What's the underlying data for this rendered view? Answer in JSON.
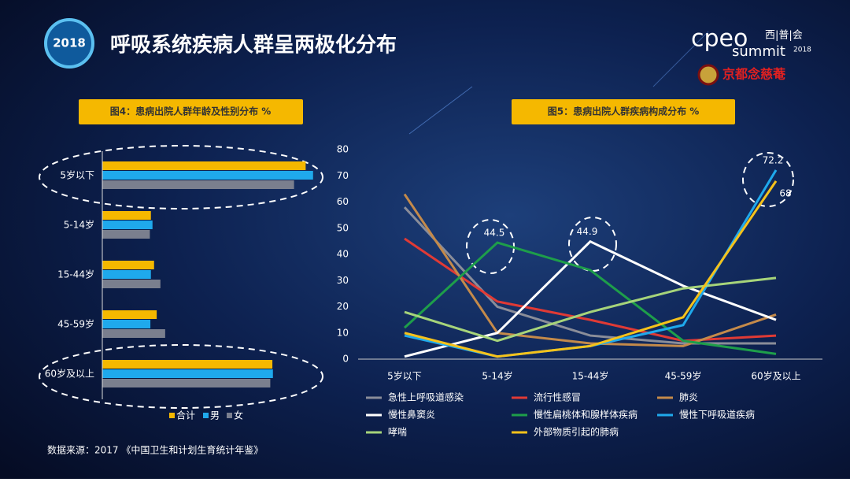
{
  "header": {
    "badge": "2018",
    "title": "呼吸系统疾病人群呈两极化分布"
  },
  "logo": {
    "brand": "cpeo",
    "brand_cn": "西|普|会",
    "summit": "summit",
    "year": "2018",
    "sponsor": "京都念慈菴"
  },
  "source": "数据来源：2017 《中国卫生和计划生育统计年鉴》",
  "chart_data": [
    {
      "type": "hbar",
      "title": "图4：患病出院人群年龄及性别分布 %",
      "categories": [
        "5岁以下",
        "5-14岁",
        "15-44岁",
        "45-59岁",
        "60岁及以上"
      ],
      "xlim": [
        0,
        45
      ],
      "series": [
        {
          "name": "合计",
          "color": "#f5b800",
          "values": [
            38.5,
            9.2,
            9.8,
            10.3,
            32.2
          ]
        },
        {
          "name": "男",
          "color": "#1fa9ec",
          "values": [
            39.9,
            9.5,
            9.2,
            9.1,
            32.3
          ]
        },
        {
          "name": "女",
          "color": "#7a7f8e",
          "values": [
            36.3,
            9.0,
            11.0,
            11.9,
            31.8
          ]
        }
      ]
    },
    {
      "type": "line",
      "title": "图5：患病出院人群疾病构成分布 %",
      "categories": [
        "5岁以下",
        "5-14岁",
        "15-44岁",
        "45-59岁",
        "60岁及以上"
      ],
      "ylim": [
        0,
        80
      ],
      "yticks": [
        0,
        10,
        20,
        30,
        40,
        50,
        60,
        70,
        80
      ],
      "series": [
        {
          "name": "急性上呼吸道感染",
          "color": "#8a8d99",
          "values": [
            58,
            20,
            9,
            6,
            6
          ]
        },
        {
          "name": "流行性感冒",
          "color": "#e03a35",
          "values": [
            46,
            22,
            15,
            7,
            9
          ]
        },
        {
          "name": "肺炎",
          "color": "#c48a4a",
          "values": [
            63,
            10,
            6,
            5,
            17
          ]
        },
        {
          "name": "慢性鼻窦炎",
          "color": "#ffffff",
          "values": [
            1,
            10,
            44.9,
            28,
            15
          ],
          "value_labels": [
            null,
            null,
            "44.9",
            null,
            null
          ]
        },
        {
          "name": "慢性扁桃体和腺样体疾病",
          "color": "#1e9e4a",
          "values": [
            12,
            44.5,
            34,
            7,
            2
          ],
          "value_labels": [
            null,
            "44.5",
            null,
            null,
            null
          ]
        },
        {
          "name": "慢性下呼吸道疾病",
          "color": "#1fa9ec",
          "values": [
            9,
            1,
            5,
            13,
            72.2
          ],
          "value_labels": [
            null,
            null,
            null,
            null,
            "72.2"
          ]
        },
        {
          "name": "哮喘",
          "color": "#a6d47a",
          "values": [
            18,
            7,
            18,
            27,
            31
          ]
        },
        {
          "name": "外部物质引起的肺病",
          "color": "#f5c21b",
          "values": [
            10,
            1,
            5,
            16,
            68
          ],
          "value_labels": [
            null,
            null,
            null,
            null,
            "68"
          ]
        }
      ]
    }
  ]
}
